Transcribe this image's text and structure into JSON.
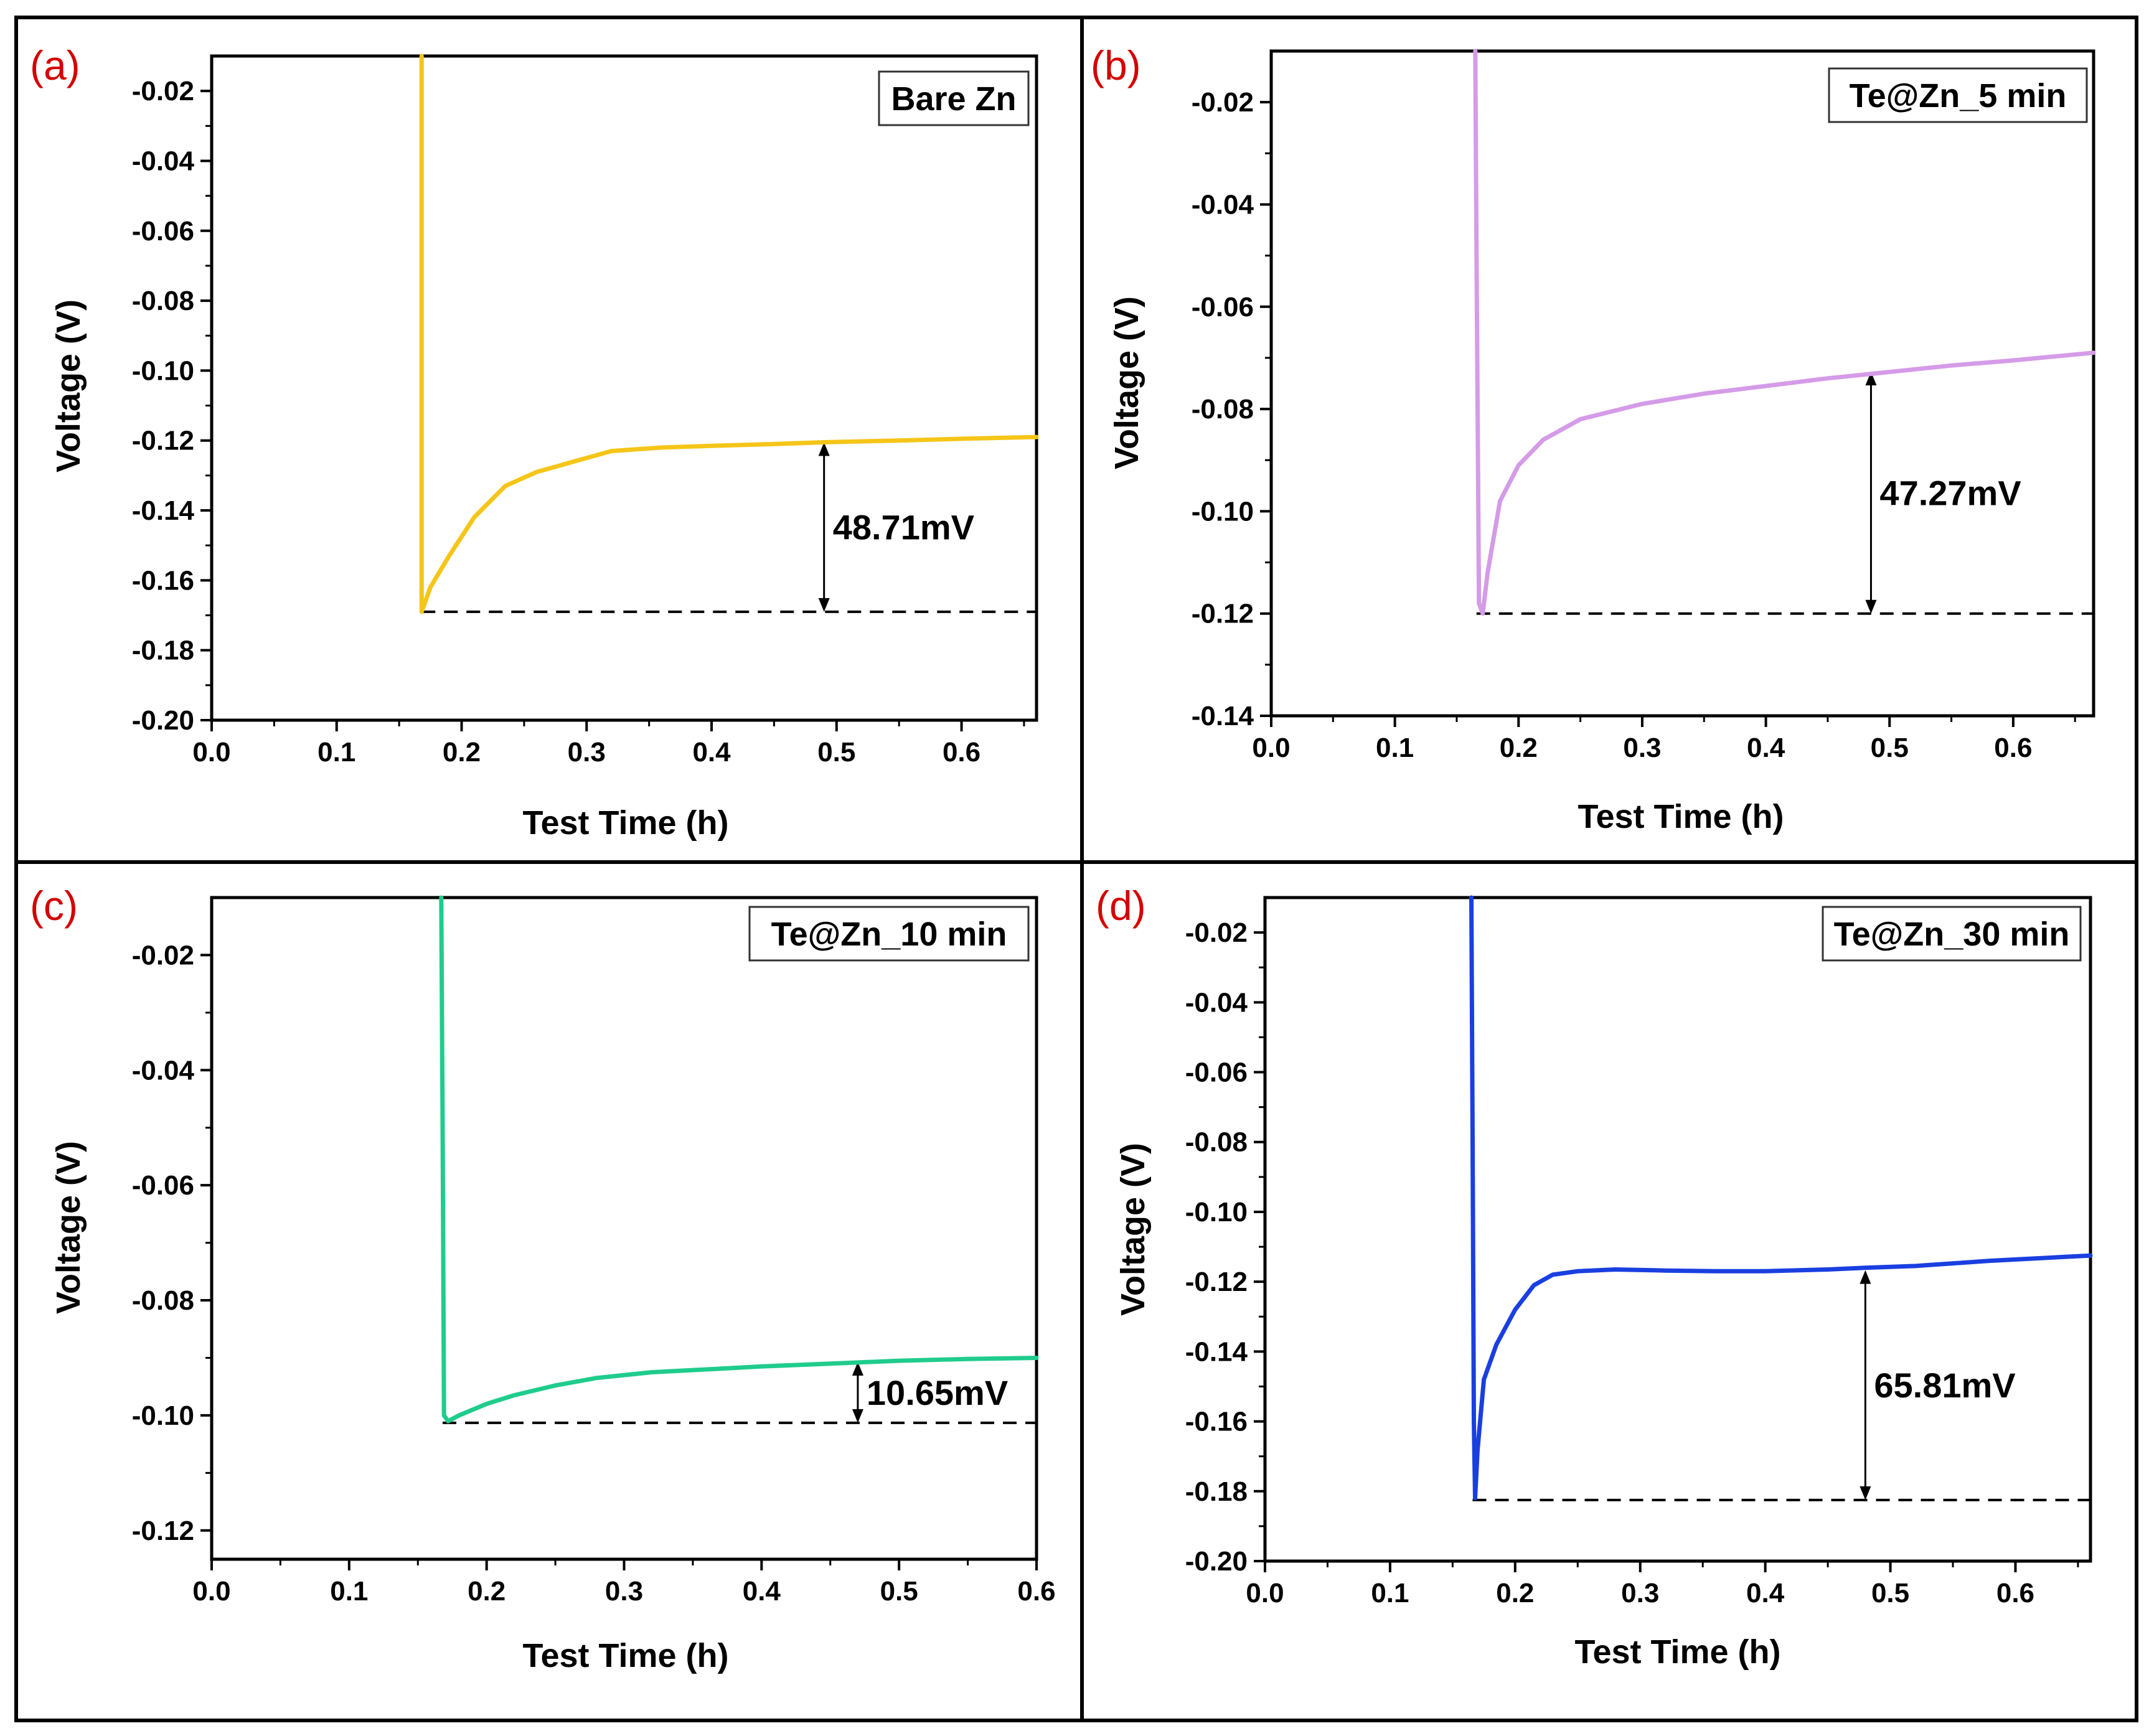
{
  "chart_data": [
    {
      "type": "line",
      "panel_label": "(a)",
      "legend": "Bare Zn",
      "xlabel": "Test Time (h)",
      "ylabel": "Voltage (V)",
      "xlim": [
        0.0,
        0.66
      ],
      "ylim": [
        -0.2,
        -0.01
      ],
      "xticks": [
        "0.0",
        "0.1",
        "0.2",
        "0.3",
        "0.4",
        "0.5",
        "0.6"
      ],
      "yticks": [
        "-0.02",
        "-0.04",
        "-0.06",
        "-0.08",
        "-0.10",
        "-0.12",
        "-0.14",
        "-0.16",
        "-0.18",
        "-0.20"
      ],
      "color": "#f5c518",
      "series": [
        {
          "name": "Bare Zn",
          "x": [
            0.168,
            0.168,
            0.175,
            0.19,
            0.21,
            0.235,
            0.26,
            0.29,
            0.32,
            0.36,
            0.4,
            0.45,
            0.49,
            0.55,
            0.6,
            0.66
          ],
          "y": [
            -0.01,
            -0.169,
            -0.162,
            -0.153,
            -0.142,
            -0.133,
            -0.129,
            -0.126,
            -0.123,
            -0.122,
            -0.1215,
            -0.121,
            -0.1205,
            -0.12,
            -0.1195,
            -0.119
          ]
        }
      ],
      "annotation": {
        "text": "48.71mV",
        "baseline": -0.169,
        "top": -0.1205,
        "x": 0.49
      }
    },
    {
      "type": "line",
      "panel_label": "(b)",
      "legend": "Te@Zn_5 min",
      "xlabel": "Test Time (h)",
      "ylabel": "Voltage (V)",
      "xlim": [
        0.0,
        0.665
      ],
      "ylim": [
        -0.14,
        -0.01
      ],
      "xticks": [
        "0.0",
        "0.1",
        "0.2",
        "0.3",
        "0.4",
        "0.5",
        "0.6"
      ],
      "yticks": [
        "-0.02",
        "-0.04",
        "-0.06",
        "-0.08",
        "-0.10",
        "-0.12",
        "-0.14"
      ],
      "color": "#d59be8",
      "series": [
        {
          "name": "Te@Zn_5 min",
          "x": [
            0.165,
            0.166,
            0.168,
            0.171,
            0.175,
            0.185,
            0.2,
            0.22,
            0.25,
            0.3,
            0.35,
            0.4,
            0.45,
            0.49,
            0.55,
            0.6,
            0.665
          ],
          "y": [
            -0.01,
            -0.05,
            -0.118,
            -0.12,
            -0.112,
            -0.098,
            -0.091,
            -0.086,
            -0.082,
            -0.079,
            -0.077,
            -0.0755,
            -0.074,
            -0.073,
            -0.0715,
            -0.0705,
            -0.069
          ]
        }
      ],
      "annotation": {
        "text": "47.27mV",
        "baseline": -0.12,
        "top": -0.0727,
        "x": 0.485
      }
    },
    {
      "type": "line",
      "panel_label": "(c)",
      "legend": "Te@Zn_10 min",
      "xlabel": "Test Time (h)",
      "ylabel": "Voltage (V)",
      "xlim": [
        0.0,
        0.6
      ],
      "ylim": [
        -0.125,
        -0.01
      ],
      "xticks": [
        "0.0",
        "0.1",
        "0.2",
        "0.3",
        "0.4",
        "0.5",
        "0.6"
      ],
      "yticks": [
        "-0.02",
        "-0.04",
        "-0.06",
        "-0.08",
        "-0.10",
        "-0.12"
      ],
      "color": "#1fcc8c",
      "series": [
        {
          "name": "Te@Zn_10 min",
          "x": [
            0.167,
            0.168,
            0.169,
            0.172,
            0.18,
            0.2,
            0.22,
            0.25,
            0.28,
            0.32,
            0.36,
            0.4,
            0.45,
            0.5,
            0.55,
            0.6
          ],
          "y": [
            -0.01,
            -0.05,
            -0.1,
            -0.101,
            -0.1,
            -0.098,
            -0.0965,
            -0.0948,
            -0.0935,
            -0.0925,
            -0.092,
            -0.0915,
            -0.091,
            -0.0905,
            -0.0902,
            -0.09
          ]
        }
      ],
      "annotation": {
        "text": "10.65mV",
        "baseline": -0.1013,
        "top": -0.0907,
        "x": 0.47
      }
    },
    {
      "type": "line",
      "panel_label": "(d)",
      "legend": "Te@Zn_30 min",
      "xlabel": "Test Time (h)",
      "ylabel": "Voltage (V)",
      "xlim": [
        0.0,
        0.66
      ],
      "ylim": [
        -0.2,
        -0.01
      ],
      "xticks": [
        "0.0",
        "0.1",
        "0.2",
        "0.3",
        "0.4",
        "0.5",
        "0.6"
      ],
      "yticks": [
        "-0.02",
        "-0.04",
        "-0.06",
        "-0.08",
        "-0.10",
        "-0.12",
        "-0.14",
        "-0.16",
        "-0.18",
        "-0.20"
      ],
      "color": "#1a3fe0",
      "series": [
        {
          "name": "Te@Zn_30 min",
          "x": [
            0.165,
            0.166,
            0.167,
            0.168,
            0.17,
            0.175,
            0.185,
            0.2,
            0.215,
            0.23,
            0.25,
            0.28,
            0.32,
            0.36,
            0.4,
            0.45,
            0.48,
            0.52,
            0.58,
            0.66
          ],
          "y": [
            -0.01,
            -0.08,
            -0.16,
            -0.182,
            -0.168,
            -0.148,
            -0.138,
            -0.128,
            -0.121,
            -0.118,
            -0.117,
            -0.1165,
            -0.1168,
            -0.117,
            -0.117,
            -0.1165,
            -0.116,
            -0.1155,
            -0.114,
            -0.1125
          ]
        }
      ],
      "annotation": {
        "text": "65.81mV",
        "baseline": -0.1825,
        "top": -0.1167,
        "x": 0.48
      }
    }
  ]
}
